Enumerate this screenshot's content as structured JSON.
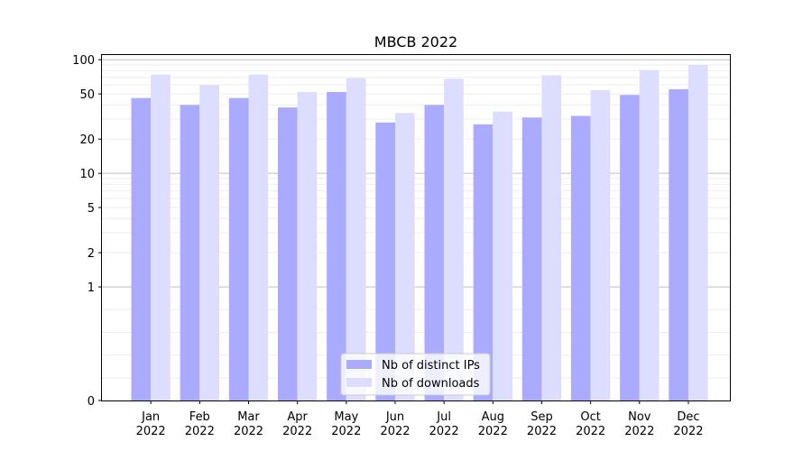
{
  "chart_data": {
    "type": "bar",
    "title": "MBCB 2022",
    "xlabel": "",
    "ylabel": "",
    "categories": [
      [
        "Jan",
        "2022"
      ],
      [
        "Feb",
        "2022"
      ],
      [
        "Mar",
        "2022"
      ],
      [
        "Apr",
        "2022"
      ],
      [
        "May",
        "2022"
      ],
      [
        "Jun",
        "2022"
      ],
      [
        "Jul",
        "2022"
      ],
      [
        "Aug",
        "2022"
      ],
      [
        "Sep",
        "2022"
      ],
      [
        "Oct",
        "2022"
      ],
      [
        "Nov",
        "2022"
      ],
      [
        "Dec",
        "2022"
      ]
    ],
    "series": [
      {
        "name": "Nb of distinct IPs",
        "color": "#aaaaff",
        "values": [
          46,
          40,
          46,
          38,
          52,
          28,
          40,
          27,
          31,
          32,
          49,
          55
        ]
      },
      {
        "name": "Nb of downloads",
        "color": "#ddddff",
        "values": [
          74,
          60,
          74,
          52,
          69,
          34,
          68,
          35,
          73,
          54,
          81,
          90
        ]
      }
    ],
    "yscale": "symlog",
    "ylim": [
      0,
      110
    ],
    "yticks": [
      {
        "value": 0,
        "label": "0"
      },
      {
        "value": 1,
        "label": "1"
      },
      {
        "value": 2,
        "label": "2"
      },
      {
        "value": 5,
        "label": "5"
      },
      {
        "value": 10,
        "label": "10"
      },
      {
        "value": 20,
        "label": "20"
      },
      {
        "value": 50,
        "label": "50"
      },
      {
        "value": 100,
        "label": "100"
      }
    ],
    "grid": true,
    "legend_position": "bottom-center"
  }
}
